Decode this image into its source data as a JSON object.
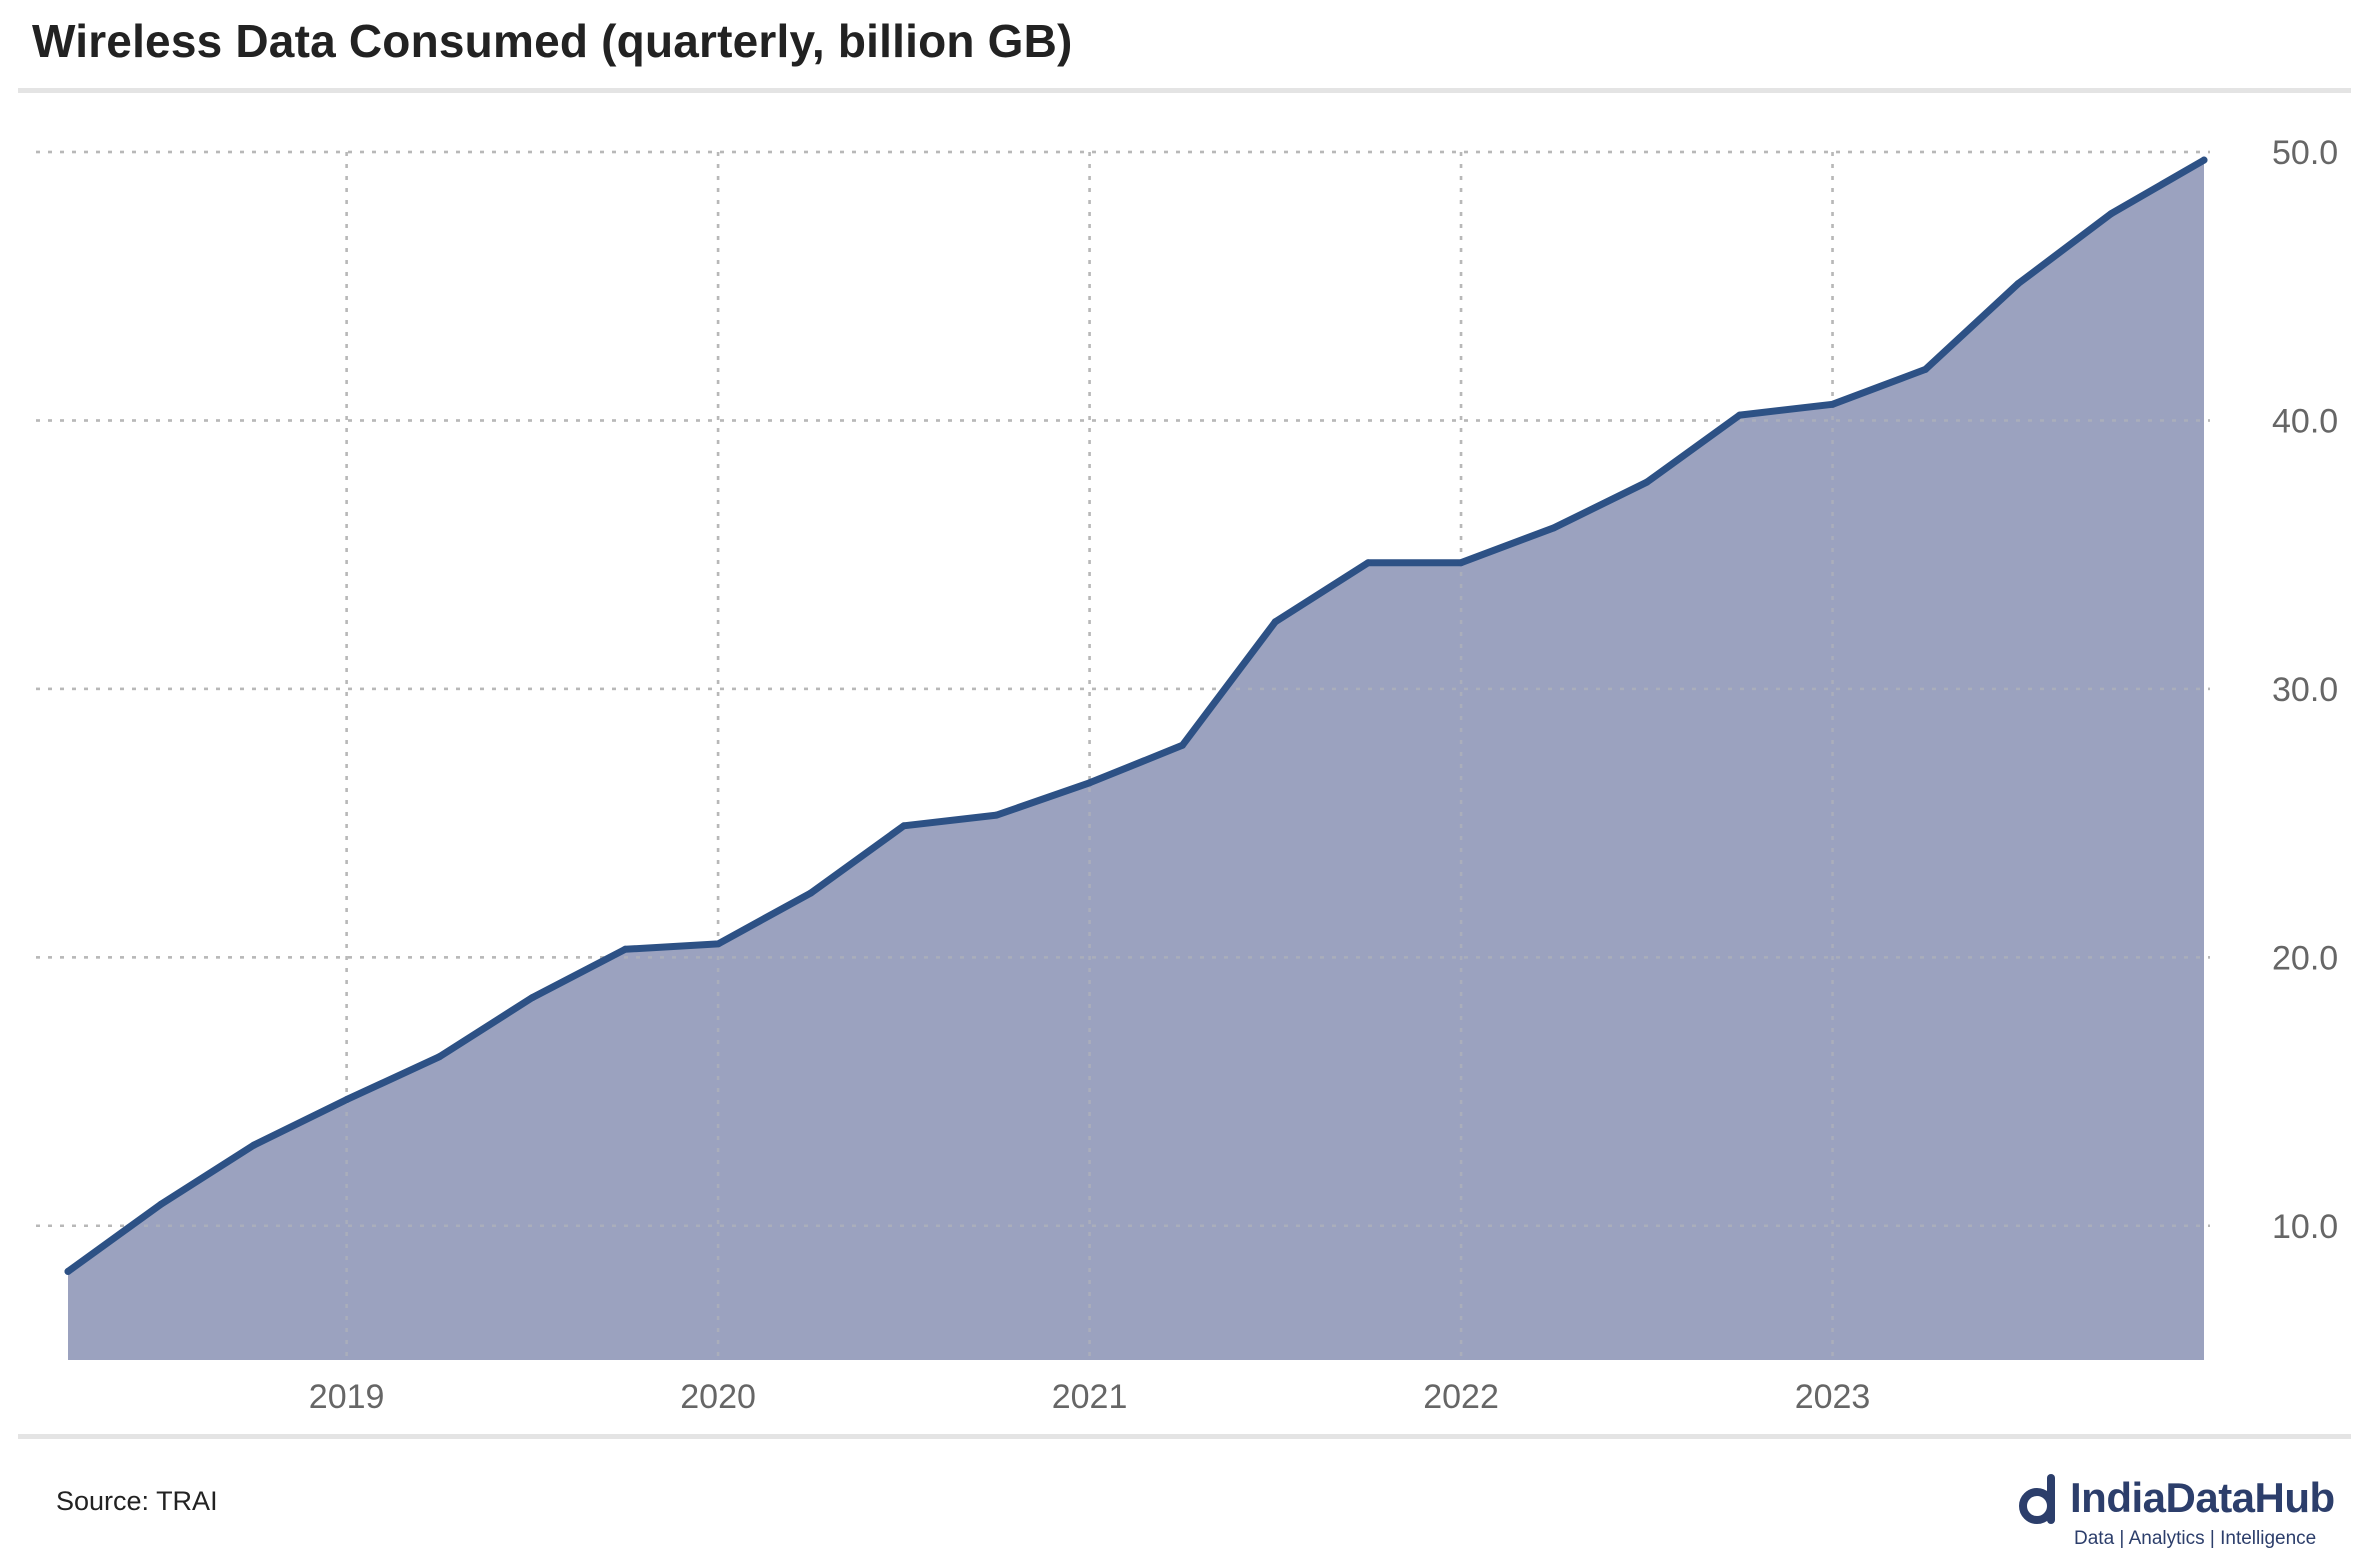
{
  "title": "Wireless Data Consumed (quarterly, billion GB)",
  "source": "Source: TRAI",
  "logo": {
    "name": "IndiaDataHub",
    "tagline": "Data | Analytics | Intelligence"
  },
  "colors": {
    "line": "#2d5185",
    "area": "#9ba2bf",
    "grid": "#b8b8b8",
    "tick_text": "#666666"
  },
  "chart_data": {
    "type": "area",
    "title": "Wireless Data Consumed (quarterly, billion GB)",
    "xlabel": "",
    "ylabel": "",
    "x": [
      2018.25,
      2018.5,
      2018.75,
      2019.0,
      2019.25,
      2019.5,
      2019.75,
      2020.0,
      2020.25,
      2020.5,
      2020.75,
      2021.0,
      2021.25,
      2021.5,
      2021.75,
      2022.0,
      2022.25,
      2022.5,
      2022.75,
      2023.0,
      2023.25,
      2023.5,
      2023.75,
      2024.0
    ],
    "values": [
      8.3,
      10.8,
      13.0,
      14.7,
      16.3,
      18.5,
      20.3,
      20.5,
      22.4,
      24.9,
      25.3,
      26.5,
      27.9,
      32.5,
      34.7,
      34.7,
      36.0,
      37.7,
      40.2,
      40.6,
      41.9,
      45.1,
      47.7,
      49.7
    ],
    "xlim": [
      2018.25,
      2024.0
    ],
    "ylim": [
      5.0,
      50.0
    ],
    "x_ticks": [
      2019,
      2020,
      2021,
      2022,
      2023
    ],
    "x_tick_labels": [
      "2019",
      "2020",
      "2021",
      "2022",
      "2023"
    ],
    "y_ticks": [
      10,
      20,
      30,
      40,
      50
    ],
    "y_tick_labels": [
      "10.0",
      "20.0",
      "30.0",
      "40.0",
      "50.0"
    ],
    "y_axis_side": "right",
    "grid": true,
    "legend": "none"
  }
}
